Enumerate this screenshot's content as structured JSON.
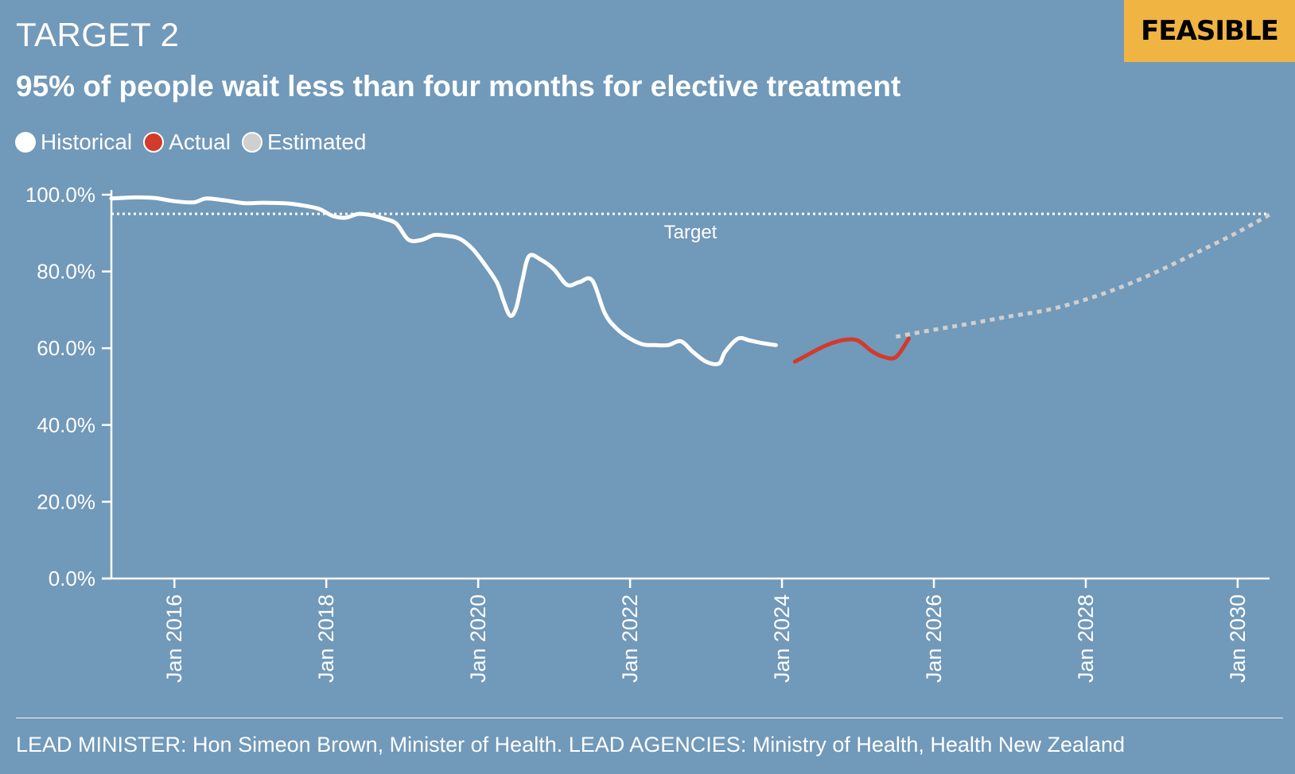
{
  "header": {
    "kicker": "TARGET 2",
    "badge": "FEASIBLE",
    "title": "95% of people wait less than four months for elective treatment"
  },
  "legend": {
    "historical": "Historical",
    "actual": "Actual",
    "estimated": "Estimated"
  },
  "footer": {
    "text": "LEAD MINISTER: Hon Simeon Brown, Minister of Health. LEAD AGENCIES: Ministry of Health, Health New Zealand"
  },
  "colors": {
    "background": "#7199b9",
    "historical": "#ffffff",
    "actual": "#d23a2c",
    "estimated": "#cfcfcf",
    "badge": "#f0b443"
  },
  "chart_data": {
    "type": "line",
    "title": "95% of people wait less than four months for elective treatment",
    "xlabel": "",
    "ylabel": "",
    "xlim": [
      2015.17,
      2030.42
    ],
    "ylim": [
      0,
      100
    ],
    "y_ticks": [
      0,
      20,
      40,
      60,
      80,
      100
    ],
    "y_tick_labels": [
      "0.0%",
      "20.0%",
      "40.0%",
      "60.0%",
      "80.0%",
      "100.0%"
    ],
    "x_ticks": [
      2016,
      2018,
      2020,
      2022,
      2024,
      2026,
      2028,
      2030
    ],
    "x_tick_labels": [
      "Jan 2016",
      "Jan 2018",
      "Jan 2020",
      "Jan 2022",
      "Jan 2024",
      "Jan 2026",
      "Jan 2028",
      "Jan 2030"
    ],
    "target": {
      "value": 95,
      "label": "Target"
    },
    "series": [
      {
        "name": "Historical",
        "style": "solid",
        "x": [
          2015.17,
          2015.5,
          2015.75,
          2016.0,
          2016.25,
          2016.42,
          2016.67,
          2016.92,
          2017.17,
          2017.5,
          2017.75,
          2017.92,
          2018.08,
          2018.25,
          2018.42,
          2018.58,
          2018.75,
          2018.92,
          2019.08,
          2019.25,
          2019.42,
          2019.58,
          2019.75,
          2019.92,
          2020.08,
          2020.25,
          2020.33,
          2020.42,
          2020.5,
          2020.58,
          2020.67,
          2020.83,
          2021.0,
          2021.17,
          2021.33,
          2021.5,
          2021.67,
          2021.83,
          2022.0,
          2022.17,
          2022.33,
          2022.5,
          2022.67,
          2022.83,
          2023.0,
          2023.17,
          2023.25,
          2023.42,
          2023.58,
          2023.75,
          2023.92
        ],
        "y": [
          99,
          99.3,
          99.1,
          98.3,
          98,
          99,
          98.5,
          97.8,
          97.9,
          97.7,
          97,
          96.2,
          94.5,
          94,
          95,
          94.7,
          93.8,
          92.5,
          88.3,
          88.2,
          89.5,
          89.3,
          88.6,
          86,
          82,
          77,
          72.5,
          68.5,
          70.5,
          77.5,
          84,
          83,
          80.5,
          76.5,
          77.2,
          77.7,
          69,
          65,
          62.5,
          61,
          60.8,
          60.8,
          61.8,
          59,
          56.5,
          56,
          59,
          62.5,
          62,
          61.3,
          60.8
        ]
      },
      {
        "name": "Actual",
        "style": "solid",
        "x": [
          2024.17,
          2024.33,
          2024.5,
          2024.67,
          2024.83,
          2025.0,
          2025.17,
          2025.33,
          2025.5,
          2025.67
        ],
        "y": [
          56.5,
          58.2,
          60.0,
          61.4,
          62.2,
          62.0,
          59.4,
          57.8,
          57.7,
          62.5
        ]
      },
      {
        "name": "Estimated",
        "style": "dotted",
        "x": [
          2025.5,
          2026.0,
          2026.5,
          2027.0,
          2027.5,
          2028.0,
          2028.5,
          2029.0,
          2029.5,
          2030.0,
          2030.42
        ],
        "y": [
          63,
          64.8,
          66.5,
          68.3,
          70,
          72.7,
          76.2,
          80.5,
          85.3,
          90.2,
          94.8
        ]
      }
    ]
  }
}
